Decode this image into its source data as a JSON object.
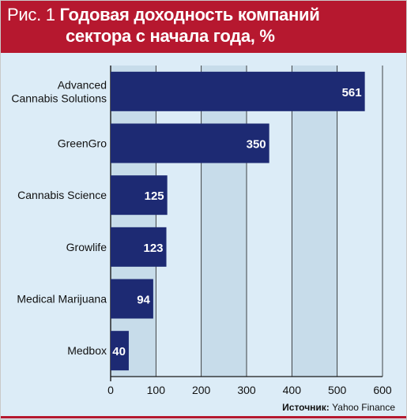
{
  "header": {
    "figure": "Рис. 1",
    "title_line1": "Годовая доходность компаний",
    "title_line2": "сектора с начала года, %"
  },
  "source": {
    "label": "Источник:",
    "value": "Yahoo Finance"
  },
  "colors": {
    "header_bg": "#b6182f",
    "plot_bg": "#dcecf7",
    "bar": "#1d2a73",
    "grid": "#1a1a1a"
  },
  "chart_data": {
    "type": "bar",
    "orientation": "horizontal",
    "title": "Годовая доходность компаний сектора с начала года, %",
    "categories": [
      [
        "Advanced",
        "Cannabis Solutions"
      ],
      [
        "GreenGro"
      ],
      [
        "Cannabis Science"
      ],
      [
        "Growlife"
      ],
      [
        "Medical Marijuana"
      ],
      [
        "Medbox"
      ]
    ],
    "values": [
      561,
      350,
      125,
      123,
      94,
      40
    ],
    "xlim": [
      0,
      600
    ],
    "xticks": [
      0,
      100,
      200,
      300,
      400,
      500,
      600
    ],
    "grid": true,
    "legend": "none"
  }
}
